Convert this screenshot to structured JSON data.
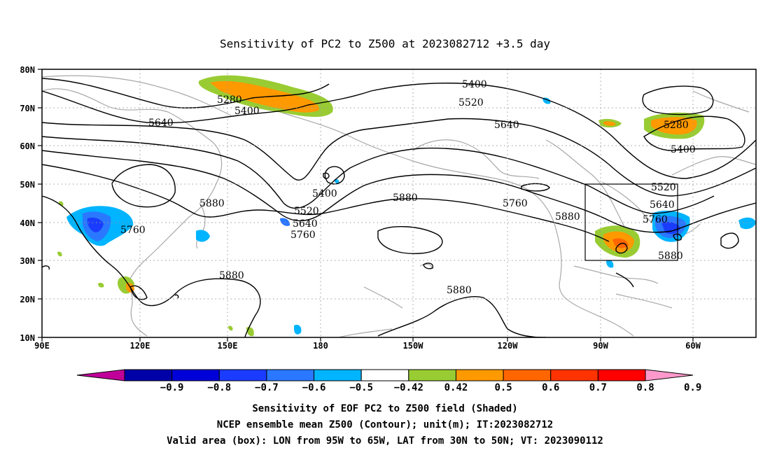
{
  "title": "Sensitivity of PC2 to Z500 at 2023082712 +3.5 day",
  "map": {
    "lon_labels": [
      "90E",
      "120E",
      "150E",
      "180",
      "150W",
      "120W",
      "90W",
      "60W"
    ],
    "lat_labels": [
      "80N",
      "70N",
      "60N",
      "50N",
      "40N",
      "30N",
      "20N",
      "10N"
    ],
    "contour_labels": [
      {
        "text": "5280",
        "key": "a"
      },
      {
        "text": "5400",
        "key": "b"
      },
      {
        "text": "5640",
        "key": "c"
      },
      {
        "text": "5400",
        "key": "d"
      },
      {
        "text": "5520",
        "key": "e"
      },
      {
        "text": "5640",
        "key": "f"
      },
      {
        "text": "5760",
        "key": "g"
      },
      {
        "text": "5880",
        "key": "h"
      },
      {
        "text": "5760",
        "key": "i"
      },
      {
        "text": "5880",
        "key": "j"
      },
      {
        "text": "5400",
        "key": "k"
      },
      {
        "text": "5520",
        "key": "l"
      },
      {
        "text": "5640",
        "key": "m"
      },
      {
        "text": "5760",
        "key": "n"
      },
      {
        "text": "5880",
        "key": "o"
      },
      {
        "text": "5880",
        "key": "p"
      },
      {
        "text": "5880",
        "key": "q"
      },
      {
        "text": "5280",
        "key": "r"
      },
      {
        "text": "5400",
        "key": "s"
      },
      {
        "text": "5520",
        "key": "t"
      },
      {
        "text": "5640",
        "key": "u"
      },
      {
        "text": "5760",
        "key": "v"
      },
      {
        "text": "5880",
        "key": "w"
      }
    ],
    "box": {
      "lon_from": "95W",
      "lon_to": "65W",
      "lat_from": "30N",
      "lat_to": "50N"
    }
  },
  "colorbar": {
    "ticks": [
      "-0.9",
      "-0.8",
      "-0.7",
      "-0.6",
      "-0.5",
      "-0.42",
      "0.42",
      "0.5",
      "0.6",
      "0.7",
      "0.8",
      "0.9"
    ],
    "colors": [
      "#c00099",
      "#0000a8",
      "#0000d8",
      "#1a3cff",
      "#2a78ff",
      "#00b4ff",
      "#ffffff",
      "#99cc33",
      "#ff9900",
      "#ff6600",
      "#ff3300",
      "#ff0000",
      "#ff99cc"
    ]
  },
  "footer": {
    "line1": "Sensitivity of EOF PC2 to Z500 field (Shaded)",
    "line2": "NCEP ensemble mean Z500 (Contour); unit(m); IT:2023082712",
    "line3": "Valid area (box): LON from 95W to 65W, LAT from 30N to 50N; VT: 2023090112"
  }
}
